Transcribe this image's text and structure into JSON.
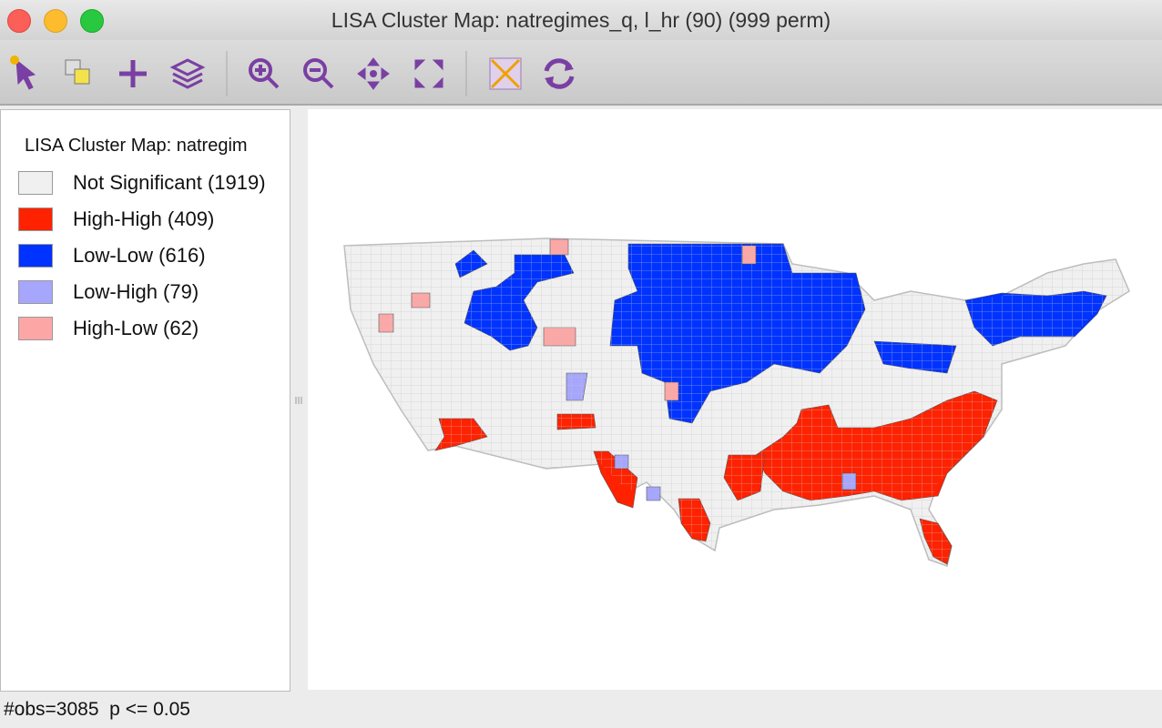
{
  "window": {
    "title": "LISA Cluster Map: natregimes_q, l_hr (90) (999 perm)"
  },
  "legend": {
    "title": "LISA Cluster Map: natregim",
    "items": [
      {
        "label": "Not Significant (1919)",
        "color": "#f0f0f0"
      },
      {
        "label": "High-High (409)",
        "color": "#ff2200"
      },
      {
        "label": "Low-Low (616)",
        "color": "#0033ff"
      },
      {
        "label": "Low-High (79)",
        "color": "#a6a6fd"
      },
      {
        "label": "High-Low (62)",
        "color": "#fca7a6"
      }
    ]
  },
  "status": {
    "text": "#obs=3085  p <= 0.05"
  }
}
